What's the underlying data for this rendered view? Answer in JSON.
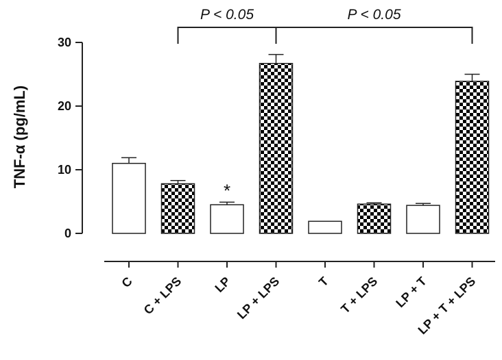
{
  "chart_data": {
    "type": "bar",
    "ylabel": "TNF-α (pg/mL)",
    "xlabel": "",
    "ylim": [
      0,
      30
    ],
    "yticks": [
      0,
      10,
      20,
      30
    ],
    "categories": [
      "C",
      "C + LPS",
      "LP",
      "LP + LPS",
      "T",
      "T + LPS",
      "LP + T",
      "LP + T + LPS"
    ],
    "values": [
      11.0,
      7.8,
      4.5,
      26.7,
      1.9,
      4.6,
      4.4,
      23.9
    ],
    "errors": [
      0.9,
      0.5,
      0.4,
      1.4,
      0.0,
      0.2,
      0.3,
      1.1
    ],
    "fills": [
      "white",
      "checker",
      "white",
      "checker",
      "white",
      "checker",
      "white",
      "checker"
    ],
    "annotations": [
      {
        "type": "star",
        "text": "*",
        "category_index": 2
      },
      {
        "type": "bracket",
        "text": "P < 0.05",
        "from": 1,
        "to": 3
      },
      {
        "type": "bracket",
        "text": "P < 0.05",
        "from": 3,
        "to": 7
      }
    ]
  }
}
